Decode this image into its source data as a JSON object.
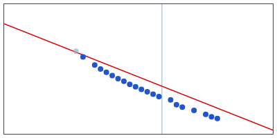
{
  "chart_data": {
    "type": "scatter",
    "tick_labels": false,
    "grid": false,
    "xlim": [
      -0.08,
      0.38
    ],
    "ylim": [
      3.0,
      4.6
    ],
    "series": [
      {
        "type": "line",
        "color": "#aaccee",
        "x": [
          0.19,
          0.19
        ],
        "values": [
          3.0,
          4.6
        ]
      },
      {
        "type": "line",
        "color": "#dd0000",
        "x": [
          -0.08,
          0.38
        ],
        "values": [
          4.358,
          3.047
        ]
      },
      {
        "type": "scatter",
        "color": "#99aaccaa",
        "marker": "circle",
        "x": [
          0.043
        ],
        "values": [
          4.02
        ]
      },
      {
        "type": "scatter",
        "color": "#2255cc",
        "marker": "circle",
        "x": [
          0.055,
          0.075,
          0.085,
          0.095,
          0.105,
          0.115,
          0.125,
          0.135,
          0.145,
          0.155,
          0.165,
          0.175,
          0.185,
          0.205,
          0.215,
          0.225,
          0.245,
          0.265,
          0.275,
          0.285
        ],
        "values": [
          3.95,
          3.85,
          3.8,
          3.76,
          3.72,
          3.68,
          3.65,
          3.61,
          3.58,
          3.55,
          3.52,
          3.49,
          3.46,
          3.42,
          3.36,
          3.33,
          3.29,
          3.24,
          3.21,
          3.19
        ]
      }
    ]
  }
}
